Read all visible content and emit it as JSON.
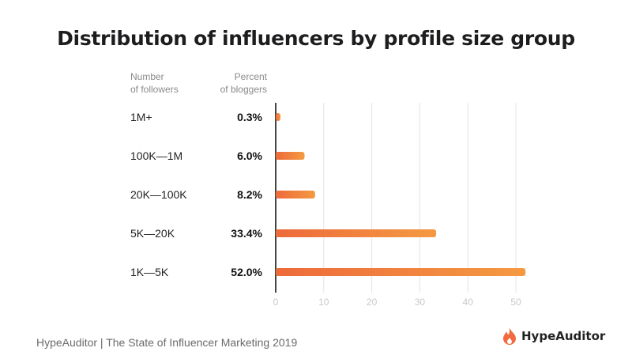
{
  "title": "Distribution of influencers by profile size group",
  "footer": "HypeAuditor | The State of Influencer Marketing 2019",
  "logo": {
    "text": "HypeAuditor",
    "icon": "flame-icon",
    "color": "#f26a3d"
  },
  "chart_data": {
    "type": "bar",
    "orientation": "horizontal",
    "title": "Distribution of influencers by profile size group",
    "column_headers": {
      "category": [
        "Number",
        "of followers"
      ],
      "value": [
        "Percent",
        "of bloggers"
      ]
    },
    "categories": [
      "1M+",
      "100K—1M",
      "20K—100K",
      "5K—20K",
      "1K—5K"
    ],
    "values": [
      0.3,
      6.0,
      8.2,
      33.4,
      52.0
    ],
    "value_labels": [
      "0.3%",
      "6.0%",
      "8.2%",
      "33.4%",
      "52.0%"
    ],
    "xlim": [
      0,
      52
    ],
    "xticks": [
      0,
      10,
      20,
      30,
      40,
      50
    ],
    "grid": true,
    "colors": {
      "bar_start": "#ee6a3b",
      "bar_end": "#f49a42",
      "grid": "#e4e4e4",
      "axis": "#444444"
    }
  }
}
